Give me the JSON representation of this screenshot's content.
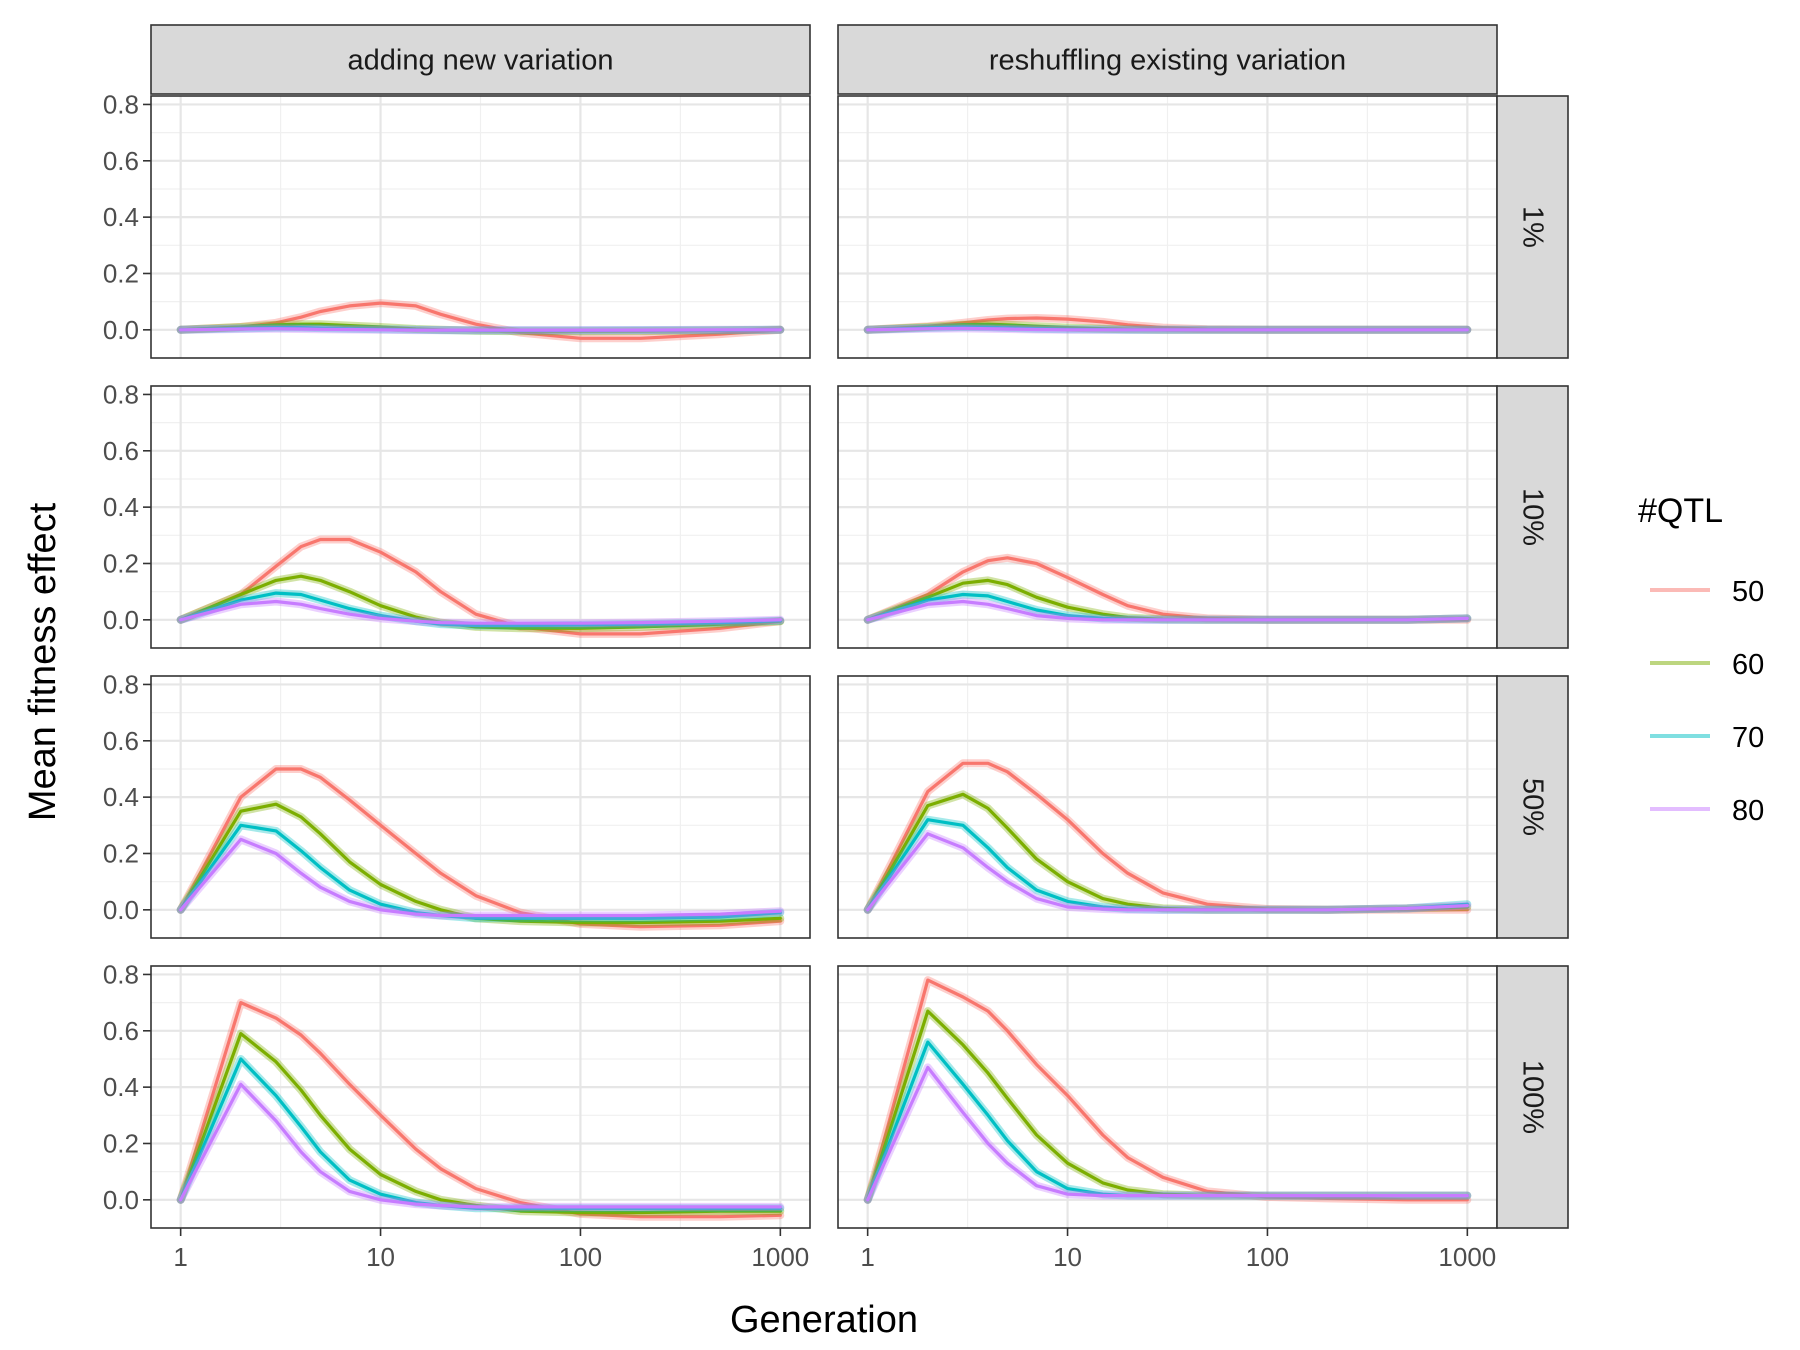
{
  "chart_data": {
    "type": "line",
    "title": "",
    "xlabel": "Generation",
    "ylabel": "Mean fitness effect",
    "xscale": "log10",
    "xlim": [
      1,
      1000
    ],
    "ylim": [
      -0.1,
      0.83
    ],
    "x_ticks": [
      1,
      10,
      100,
      1000
    ],
    "x_tick_labels": [
      "1",
      "10",
      "100",
      "1000"
    ],
    "y_ticks": [
      0.0,
      0.2,
      0.4,
      0.6,
      0.8
    ],
    "y_tick_labels": [
      "0.0",
      "0.2",
      "0.4",
      "0.6",
      "0.8"
    ],
    "grid": true,
    "legend": {
      "title": "#QTL",
      "position": "right",
      "entries": [
        {
          "label": "50",
          "color": "#F8766D"
        },
        {
          "label": "60",
          "color": "#7CAE00"
        },
        {
          "label": "70",
          "color": "#00BFC4"
        },
        {
          "label": "80",
          "color": "#C77CFF"
        }
      ]
    },
    "facet_columns": [
      "adding new variation",
      "reshuffling existing variation"
    ],
    "facet_rows": [
      "1%",
      "10%",
      "50%",
      "100%"
    ],
    "x": [
      1,
      2,
      3,
      4,
      5,
      7,
      10,
      15,
      20,
      30,
      50,
      100,
      200,
      500,
      1000
    ],
    "panels": [
      {
        "column": "adding new variation",
        "row": "1%",
        "series": [
          {
            "name": "50",
            "values": [
              0.0,
              0.01,
              0.025,
              0.045,
              0.065,
              0.085,
              0.095,
              0.085,
              0.055,
              0.02,
              -0.01,
              -0.03,
              -0.03,
              -0.015,
              0.0
            ]
          },
          {
            "name": "60",
            "values": [
              0.0,
              0.01,
              0.018,
              0.02,
              0.02,
              0.015,
              0.01,
              0.003,
              0.0,
              -0.003,
              -0.005,
              -0.005,
              -0.004,
              -0.002,
              0.0
            ]
          },
          {
            "name": "70",
            "values": [
              0.0,
              0.005,
              0.008,
              0.008,
              0.006,
              0.004,
              0.002,
              0.0,
              -0.001,
              -0.002,
              -0.002,
              -0.002,
              -0.001,
              -0.001,
              0.0
            ]
          },
          {
            "name": "80",
            "values": [
              0.0,
              0.003,
              0.004,
              0.003,
              0.002,
              0.001,
              0.0,
              -0.001,
              -0.001,
              -0.001,
              -0.001,
              -0.001,
              -0.001,
              0.0,
              0.0
            ]
          }
        ]
      },
      {
        "column": "reshuffling existing variation",
        "row": "1%",
        "series": [
          {
            "name": "50",
            "values": [
              0.0,
              0.012,
              0.025,
              0.035,
              0.04,
              0.042,
              0.038,
              0.028,
              0.018,
              0.008,
              0.002,
              0.0,
              0.0,
              0.0,
              0.0
            ]
          },
          {
            "name": "60",
            "values": [
              0.0,
              0.01,
              0.018,
              0.02,
              0.018,
              0.013,
              0.008,
              0.004,
              0.002,
              0.0,
              0.0,
              0.0,
              0.0,
              0.0,
              0.0
            ]
          },
          {
            "name": "70",
            "values": [
              0.0,
              0.007,
              0.01,
              0.009,
              0.007,
              0.004,
              0.002,
              0.001,
              0.0,
              0.0,
              0.0,
              0.0,
              0.0,
              0.0,
              0.0
            ]
          },
          {
            "name": "80",
            "values": [
              0.0,
              0.004,
              0.005,
              0.004,
              0.003,
              0.001,
              0.0,
              0.0,
              0.0,
              0.0,
              0.0,
              0.0,
              0.0,
              0.0,
              0.0
            ]
          }
        ]
      },
      {
        "column": "adding new variation",
        "row": "10%",
        "series": [
          {
            "name": "50",
            "values": [
              0.0,
              0.09,
              0.19,
              0.26,
              0.285,
              0.285,
              0.24,
              0.17,
              0.1,
              0.02,
              -0.025,
              -0.05,
              -0.05,
              -0.03,
              -0.005
            ]
          },
          {
            "name": "60",
            "values": [
              0.0,
              0.09,
              0.14,
              0.155,
              0.14,
              0.1,
              0.05,
              0.01,
              -0.01,
              -0.025,
              -0.03,
              -0.03,
              -0.025,
              -0.015,
              -0.005
            ]
          },
          {
            "name": "70",
            "values": [
              0.0,
              0.07,
              0.095,
              0.09,
              0.07,
              0.04,
              0.015,
              -0.005,
              -0.015,
              -0.02,
              -0.02,
              -0.018,
              -0.015,
              -0.01,
              -0.003
            ]
          },
          {
            "name": "80",
            "values": [
              0.0,
              0.055,
              0.065,
              0.055,
              0.04,
              0.02,
              0.005,
              -0.005,
              -0.01,
              -0.012,
              -0.012,
              -0.012,
              -0.01,
              -0.005,
              0.0
            ]
          }
        ]
      },
      {
        "column": "reshuffling existing variation",
        "row": "10%",
        "series": [
          {
            "name": "50",
            "values": [
              0.0,
              0.09,
              0.17,
              0.21,
              0.22,
              0.2,
              0.15,
              0.09,
              0.05,
              0.02,
              0.005,
              0.0,
              0.0,
              0.0,
              0.0
            ]
          },
          {
            "name": "60",
            "values": [
              0.0,
              0.08,
              0.13,
              0.14,
              0.125,
              0.08,
              0.045,
              0.02,
              0.008,
              0.002,
              0.0,
              0.0,
              0.0,
              0.0,
              0.005
            ]
          },
          {
            "name": "70",
            "values": [
              0.0,
              0.07,
              0.09,
              0.085,
              0.065,
              0.035,
              0.015,
              0.005,
              0.002,
              0.0,
              0.0,
              0.0,
              0.0,
              0.0,
              0.005
            ]
          },
          {
            "name": "80",
            "values": [
              0.0,
              0.055,
              0.065,
              0.055,
              0.04,
              0.015,
              0.005,
              0.0,
              0.0,
              0.0,
              0.0,
              0.0,
              0.0,
              0.0,
              0.005
            ]
          }
        ]
      },
      {
        "column": "adding new variation",
        "row": "50%",
        "series": [
          {
            "name": "50",
            "values": [
              0.0,
              0.4,
              0.5,
              0.5,
              0.47,
              0.39,
              0.3,
              0.2,
              0.13,
              0.05,
              -0.01,
              -0.05,
              -0.06,
              -0.055,
              -0.04
            ]
          },
          {
            "name": "60",
            "values": [
              0.0,
              0.35,
              0.375,
              0.33,
              0.27,
              0.17,
              0.09,
              0.03,
              0.0,
              -0.03,
              -0.04,
              -0.045,
              -0.045,
              -0.04,
              -0.03
            ]
          },
          {
            "name": "70",
            "values": [
              0.0,
              0.3,
              0.28,
              0.21,
              0.15,
              0.07,
              0.02,
              -0.01,
              -0.02,
              -0.03,
              -0.03,
              -0.03,
              -0.03,
              -0.025,
              -0.01
            ]
          },
          {
            "name": "80",
            "values": [
              0.0,
              0.25,
              0.2,
              0.13,
              0.08,
              0.03,
              0.0,
              -0.015,
              -0.02,
              -0.02,
              -0.02,
              -0.02,
              -0.02,
              -0.015,
              -0.005
            ]
          }
        ]
      },
      {
        "column": "reshuffling existing variation",
        "row": "50%",
        "series": [
          {
            "name": "50",
            "values": [
              0.0,
              0.42,
              0.52,
              0.52,
              0.49,
              0.41,
              0.32,
              0.2,
              0.13,
              0.06,
              0.02,
              0.003,
              0.0,
              0.0,
              0.0
            ]
          },
          {
            "name": "60",
            "values": [
              0.0,
              0.37,
              0.41,
              0.36,
              0.29,
              0.18,
              0.1,
              0.04,
              0.02,
              0.005,
              0.0,
              0.0,
              0.0,
              0.005,
              0.01
            ]
          },
          {
            "name": "70",
            "values": [
              0.0,
              0.32,
              0.3,
              0.22,
              0.15,
              0.07,
              0.03,
              0.01,
              0.003,
              0.0,
              0.0,
              0.0,
              0.0,
              0.005,
              0.02
            ]
          },
          {
            "name": "80",
            "values": [
              0.0,
              0.27,
              0.22,
              0.15,
              0.1,
              0.04,
              0.01,
              0.003,
              0.0,
              0.0,
              0.0,
              0.0,
              0.0,
              0.005,
              0.015
            ]
          }
        ]
      },
      {
        "column": "adding new variation",
        "row": "100%",
        "series": [
          {
            "name": "50",
            "values": [
              0.0,
              0.7,
              0.645,
              0.585,
              0.52,
              0.41,
              0.3,
              0.18,
              0.11,
              0.04,
              -0.01,
              -0.05,
              -0.06,
              -0.06,
              -0.055
            ]
          },
          {
            "name": "60",
            "values": [
              0.0,
              0.59,
              0.49,
              0.39,
              0.3,
              0.18,
              0.09,
              0.03,
              0.0,
              -0.02,
              -0.04,
              -0.045,
              -0.045,
              -0.04,
              -0.04
            ]
          },
          {
            "name": "70",
            "values": [
              0.0,
              0.5,
              0.37,
              0.26,
              0.17,
              0.07,
              0.02,
              -0.01,
              -0.02,
              -0.03,
              -0.03,
              -0.03,
              -0.03,
              -0.03,
              -0.03
            ]
          },
          {
            "name": "80",
            "values": [
              0.0,
              0.41,
              0.28,
              0.17,
              0.1,
              0.03,
              0.0,
              -0.015,
              -0.02,
              -0.025,
              -0.025,
              -0.025,
              -0.025,
              -0.025,
              -0.025
            ]
          }
        ]
      },
      {
        "column": "reshuffling existing variation",
        "row": "100%",
        "series": [
          {
            "name": "50",
            "values": [
              0.0,
              0.78,
              0.72,
              0.67,
              0.6,
              0.48,
              0.37,
              0.23,
              0.15,
              0.08,
              0.03,
              0.01,
              0.005,
              0.0,
              0.0
            ]
          },
          {
            "name": "60",
            "values": [
              0.0,
              0.67,
              0.55,
              0.45,
              0.36,
              0.23,
              0.13,
              0.06,
              0.035,
              0.02,
              0.015,
              0.015,
              0.015,
              0.015,
              0.015
            ]
          },
          {
            "name": "70",
            "values": [
              0.0,
              0.56,
              0.41,
              0.3,
              0.21,
              0.1,
              0.04,
              0.02,
              0.015,
              0.015,
              0.015,
              0.015,
              0.015,
              0.015,
              0.015
            ]
          },
          {
            "name": "80",
            "values": [
              0.0,
              0.47,
              0.31,
              0.2,
              0.13,
              0.05,
              0.02,
              0.015,
              0.015,
              0.015,
              0.015,
              0.015,
              0.015,
              0.015,
              0.015
            ]
          }
        ]
      }
    ]
  }
}
